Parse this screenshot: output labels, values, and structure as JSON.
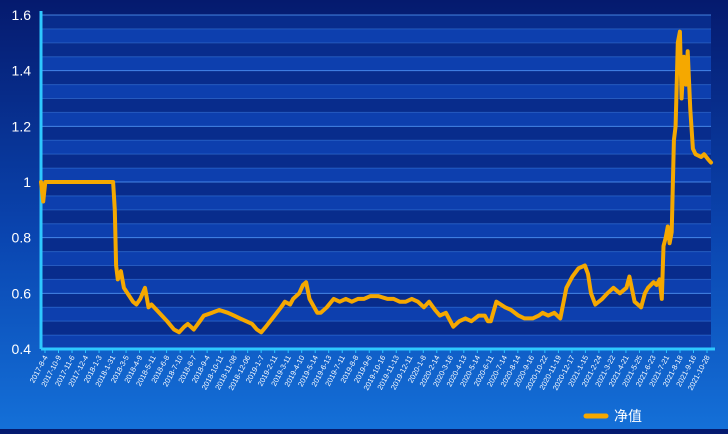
{
  "colors": {
    "background_top": "#051a6e",
    "background_bottom": "#1470d8",
    "plot_band_dark": "#082c8c",
    "plot_band_light": "#0d3fae",
    "gridline": "#5aa0ff",
    "axis": "#2ec8ff",
    "series": "#f5a800",
    "text": "#ffffff"
  },
  "chart_data": {
    "type": "line",
    "title": "",
    "xlabel": "",
    "ylabel": "",
    "ylim": [
      0.4,
      1.6
    ],
    "yticks": [
      0.4,
      0.6,
      0.8,
      1,
      1.2,
      1.4,
      1.6
    ],
    "yticklabels": [
      "0.4",
      "0.6",
      "0.8",
      "1",
      "1.2",
      "1.4",
      "1.6"
    ],
    "xlim": [
      "2017-08-04",
      "2021-11-03"
    ],
    "xticklabels": [
      "2017-8-4",
      "2017-10-9",
      "2017-11-6",
      "2017-12-4",
      "2018-1-3",
      "2018-1-31",
      "2018-3-5",
      "2018-4-9",
      "2018-5-11",
      "2018-6-8",
      "2018-7-10",
      "2018-8-7",
      "2018-9-4",
      "2018-10-11",
      "2018-11-08",
      "2018-12-06",
      "2019-1-7",
      "2019-2-11",
      "2019-3-11",
      "2019-4-10",
      "2019-5-14",
      "2019-6-13",
      "2019-7-11",
      "2019-8-8",
      "2019-9-6",
      "2019-10-16",
      "2019-11-13",
      "2019-12-11",
      "2020-1-8",
      "2020-2-14",
      "2020-3-16",
      "2020-4-13",
      "2020-5-14",
      "2020-6-11",
      "2020-7-14",
      "2020-8-14",
      "2020-9-16",
      "2020-10-22",
      "2020-11-19",
      "2020-12-17",
      "2021-1-15",
      "2021-2-24",
      "2021-3-22",
      "2021-4-21",
      "2021-5-25",
      "2021-6-23",
      "2021-7-21",
      "2021-8-18",
      "2021-9-16",
      "2021-10-28"
    ],
    "grid": true,
    "legend_position": "bottom-right",
    "series": [
      {
        "name": "净值",
        "x": [
          "2017-08-04",
          "2017-08-09",
          "2017-08-14",
          "2017-08-22",
          "2018-01-18",
          "2018-01-22",
          "2018-01-25",
          "2018-01-29",
          "2018-02-05",
          "2018-02-12",
          "2018-03-05",
          "2018-03-13",
          "2018-03-22",
          "2018-04-02",
          "2018-04-10",
          "2018-04-17",
          "2018-05-11",
          "2018-05-23",
          "2018-06-08",
          "2018-06-20",
          "2018-07-02",
          "2018-07-10",
          "2018-07-24",
          "2018-08-07",
          "2018-08-16",
          "2018-09-04",
          "2018-09-21",
          "2018-10-11",
          "2018-10-25",
          "2018-11-08",
          "2018-11-22",
          "2018-12-06",
          "2018-12-17",
          "2018-12-27",
          "2019-01-07",
          "2019-01-22",
          "2019-02-11",
          "2019-02-20",
          "2019-03-04",
          "2019-03-11",
          "2019-03-25",
          "2019-04-03",
          "2019-04-10",
          "2019-04-18",
          "2019-05-06",
          "2019-05-14",
          "2019-05-28",
          "2019-06-13",
          "2019-06-27",
          "2019-07-11",
          "2019-07-25",
          "2019-08-08",
          "2019-08-22",
          "2019-09-06",
          "2019-09-24",
          "2019-10-16",
          "2019-10-30",
          "2019-11-13",
          "2019-11-27",
          "2019-12-11",
          "2019-12-25",
          "2020-01-08",
          "2020-01-20",
          "2020-02-03",
          "2020-02-14",
          "2020-02-28",
          "2020-03-16",
          "2020-03-30",
          "2020-04-13",
          "2020-04-27",
          "2020-05-14",
          "2020-05-28",
          "2020-06-04",
          "2020-06-11",
          "2020-06-24",
          "2020-07-14",
          "2020-07-28",
          "2020-08-14",
          "2020-08-28",
          "2020-09-16",
          "2020-09-30",
          "2020-10-09",
          "2020-10-22",
          "2020-11-05",
          "2020-11-19",
          "2020-12-03",
          "2020-12-17",
          "2020-12-31",
          "2021-01-15",
          "2021-01-22",
          "2021-01-29",
          "2021-02-08",
          "2021-02-24",
          "2021-03-08",
          "2021-03-22",
          "2021-04-06",
          "2021-04-21",
          "2021-04-28",
          "2021-05-10",
          "2021-05-25",
          "2021-06-03",
          "2021-06-10",
          "2021-06-23",
          "2021-06-30",
          "2021-07-07",
          "2021-07-12",
          "2021-07-16",
          "2021-07-21",
          "2021-07-26",
          "2021-07-30",
          "2021-08-04",
          "2021-08-09",
          "2021-08-13",
          "2021-08-18",
          "2021-08-23",
          "2021-08-27",
          "2021-09-01",
          "2021-09-06",
          "2021-09-10",
          "2021-09-16",
          "2021-09-22",
          "2021-09-28",
          "2021-10-11",
          "2021-10-18",
          "2021-10-28",
          "2021-11-03"
        ],
        "values": [
          1.0,
          0.93,
          1.0,
          1.0,
          1.0,
          0.9,
          0.7,
          0.65,
          0.68,
          0.62,
          0.57,
          0.56,
          0.58,
          0.62,
          0.55,
          0.56,
          0.52,
          0.5,
          0.47,
          0.46,
          0.48,
          0.49,
          0.47,
          0.5,
          0.52,
          0.53,
          0.54,
          0.53,
          0.52,
          0.51,
          0.5,
          0.49,
          0.47,
          0.46,
          0.48,
          0.51,
          0.55,
          0.57,
          0.56,
          0.58,
          0.6,
          0.63,
          0.64,
          0.58,
          0.53,
          0.53,
          0.55,
          0.58,
          0.57,
          0.58,
          0.57,
          0.58,
          0.58,
          0.59,
          0.59,
          0.58,
          0.58,
          0.57,
          0.57,
          0.58,
          0.57,
          0.55,
          0.57,
          0.54,
          0.52,
          0.53,
          0.48,
          0.5,
          0.51,
          0.5,
          0.52,
          0.52,
          0.5,
          0.5,
          0.57,
          0.55,
          0.54,
          0.52,
          0.51,
          0.51,
          0.52,
          0.53,
          0.52,
          0.53,
          0.51,
          0.62,
          0.66,
          0.69,
          0.7,
          0.67,
          0.6,
          0.56,
          0.58,
          0.6,
          0.62,
          0.6,
          0.62,
          0.66,
          0.57,
          0.55,
          0.6,
          0.62,
          0.64,
          0.63,
          0.65,
          0.58,
          0.77,
          0.8,
          0.84,
          0.78,
          0.82,
          1.15,
          1.2,
          1.5,
          1.54,
          1.3,
          1.45,
          1.35,
          1.47,
          1.26,
          1.12,
          1.1,
          1.09,
          1.1,
          1.08,
          1.07
        ]
      }
    ]
  }
}
